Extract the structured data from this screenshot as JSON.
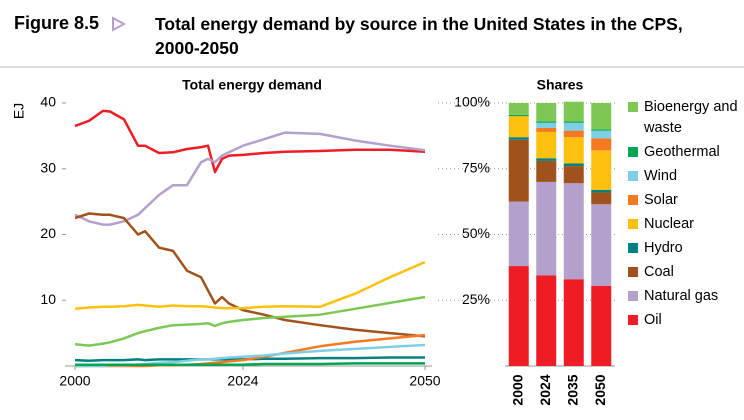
{
  "header": {
    "label": "Figure 8.5",
    "title": "Total energy demand by source in the United States in the CPS, 2000-2050"
  },
  "chart_data": [
    {
      "type": "line",
      "title": "Total energy demand",
      "y_label": "EJ",
      "x": [
        2000,
        2002,
        2004,
        2005,
        2007,
        2009,
        2010,
        2012,
        2014,
        2016,
        2018,
        2019,
        2020,
        2021,
        2022,
        2024,
        2027,
        2030,
        2035,
        2040,
        2045,
        2050
      ],
      "xlim": [
        2000,
        2050
      ],
      "xticks": [
        2000,
        2024,
        2050
      ],
      "ylim": [
        0,
        40
      ],
      "yticks": [
        10,
        20,
        30,
        40
      ],
      "series": [
        {
          "color": "#ee1c25",
          "values": [
            36.5,
            37.3,
            38.8,
            38.7,
            37.5,
            33.5,
            33.5,
            32.4,
            32.5,
            33,
            33.3,
            33.5,
            29.5,
            31.5,
            32,
            32.1,
            32.4,
            32.6,
            32.7,
            32.9,
            32.9,
            32.6
          ]
        },
        {
          "color": "#b4a0cc",
          "values": [
            23,
            22,
            21.5,
            21.5,
            22,
            23,
            24,
            26,
            27.5,
            27.5,
            31,
            31.5,
            31,
            32,
            32.5,
            33.5,
            34.5,
            35.5,
            35.3,
            34.3,
            33.5,
            32.8
          ]
        },
        {
          "color": "#a0521c",
          "values": [
            22.5,
            23.2,
            23,
            23,
            22.5,
            20,
            20.5,
            18,
            17.5,
            14.5,
            13.5,
            11.5,
            9.5,
            10.5,
            9.5,
            8.5,
            7.8,
            7,
            6.2,
            5.5,
            5,
            4.5
          ]
        },
        {
          "color": "#008080",
          "values": [
            0.9,
            0.8,
            0.9,
            0.9,
            0.9,
            1,
            0.9,
            1,
            1,
            1,
            1,
            1,
            1,
            1,
            1,
            1,
            1.1,
            1.1,
            1.2,
            1.2,
            1.3,
            1.3
          ]
        },
        {
          "color": "#fdc00f",
          "values": [
            8.7,
            8.9,
            9,
            9,
            9.1,
            9.3,
            9.2,
            9,
            9.2,
            9.1,
            9.1,
            9,
            8.9,
            8.8,
            8.8,
            8.8,
            9,
            9.1,
            9,
            11,
            13.5,
            15.8
          ]
        },
        {
          "color": "#f47920",
          "values": [
            0,
            0,
            0,
            0,
            0,
            0,
            0,
            0.1,
            0.1,
            0.2,
            0.3,
            0.4,
            0.5,
            0.6,
            0.7,
            0.9,
            1.4,
            2,
            3,
            3.7,
            4.2,
            4.7
          ]
        },
        {
          "color": "#7ecfe6",
          "values": [
            0,
            0,
            0,
            0.1,
            0.1,
            0.2,
            0.3,
            0.5,
            0.6,
            0.8,
            1,
            1,
            1.1,
            1.2,
            1.3,
            1.4,
            1.6,
            1.9,
            2.3,
            2.6,
            2.9,
            3.2
          ]
        },
        {
          "color": "#00a651",
          "values": [
            0.2,
            0.2,
            0.2,
            0.2,
            0.2,
            0.2,
            0.2,
            0.2,
            0.2,
            0.2,
            0.2,
            0.2,
            0.2,
            0.2,
            0.2,
            0.2,
            0.3,
            0.3,
            0.3,
            0.4,
            0.4,
            0.4
          ]
        },
        {
          "color": "#7dc855",
          "values": [
            3.3,
            3.1,
            3.4,
            3.6,
            4.2,
            5,
            5.3,
            5.8,
            6.2,
            6.3,
            6.4,
            6.5,
            6.1,
            6.5,
            6.7,
            7,
            7.3,
            7.5,
            7.8,
            8.7,
            9.6,
            10.5
          ]
        }
      ]
    },
    {
      "type": "bar",
      "stacked": true,
      "title": "Shares",
      "categories": [
        "2000",
        "2024",
        "2035",
        "2050"
      ],
      "ylim": [
        0,
        100
      ],
      "yticks": [
        {
          "value": 25,
          "label": "25%"
        },
        {
          "value": 50,
          "label": "50%"
        },
        {
          "value": 75,
          "label": "75%"
        },
        {
          "value": 100,
          "label": "100%"
        }
      ],
      "grid": true,
      "series": [
        {
          "name": "Oil",
          "color": "#ee1c25",
          "values": [
            38,
            34.5,
            33,
            30.5
          ]
        },
        {
          "name": "Natural gas",
          "color": "#b4a0cc",
          "values": [
            24.5,
            35.5,
            36.5,
            31
          ]
        },
        {
          "name": "Coal",
          "color": "#a0521c",
          "values": [
            23.5,
            8,
            6.5,
            4.5
          ]
        },
        {
          "name": "Hydro",
          "color": "#008080",
          "values": [
            1,
            1,
            1,
            1
          ]
        },
        {
          "name": "Nuclear",
          "color": "#fdc00f",
          "values": [
            8,
            10,
            10,
            15
          ]
        },
        {
          "name": "Solar",
          "color": "#f47920",
          "values": [
            0,
            1.5,
            2.5,
            4.5
          ]
        },
        {
          "name": "Wind",
          "color": "#7ecfe6",
          "values": [
            0,
            2,
            3,
            3
          ]
        },
        {
          "name": "Geothermal",
          "color": "#00a651",
          "values": [
            0.5,
            0.5,
            0.5,
            0.5
          ]
        },
        {
          "name": "Bioenergy and waste",
          "color": "#7dc855",
          "values": [
            4.5,
            7,
            7.5,
            10
          ]
        }
      ]
    }
  ]
}
